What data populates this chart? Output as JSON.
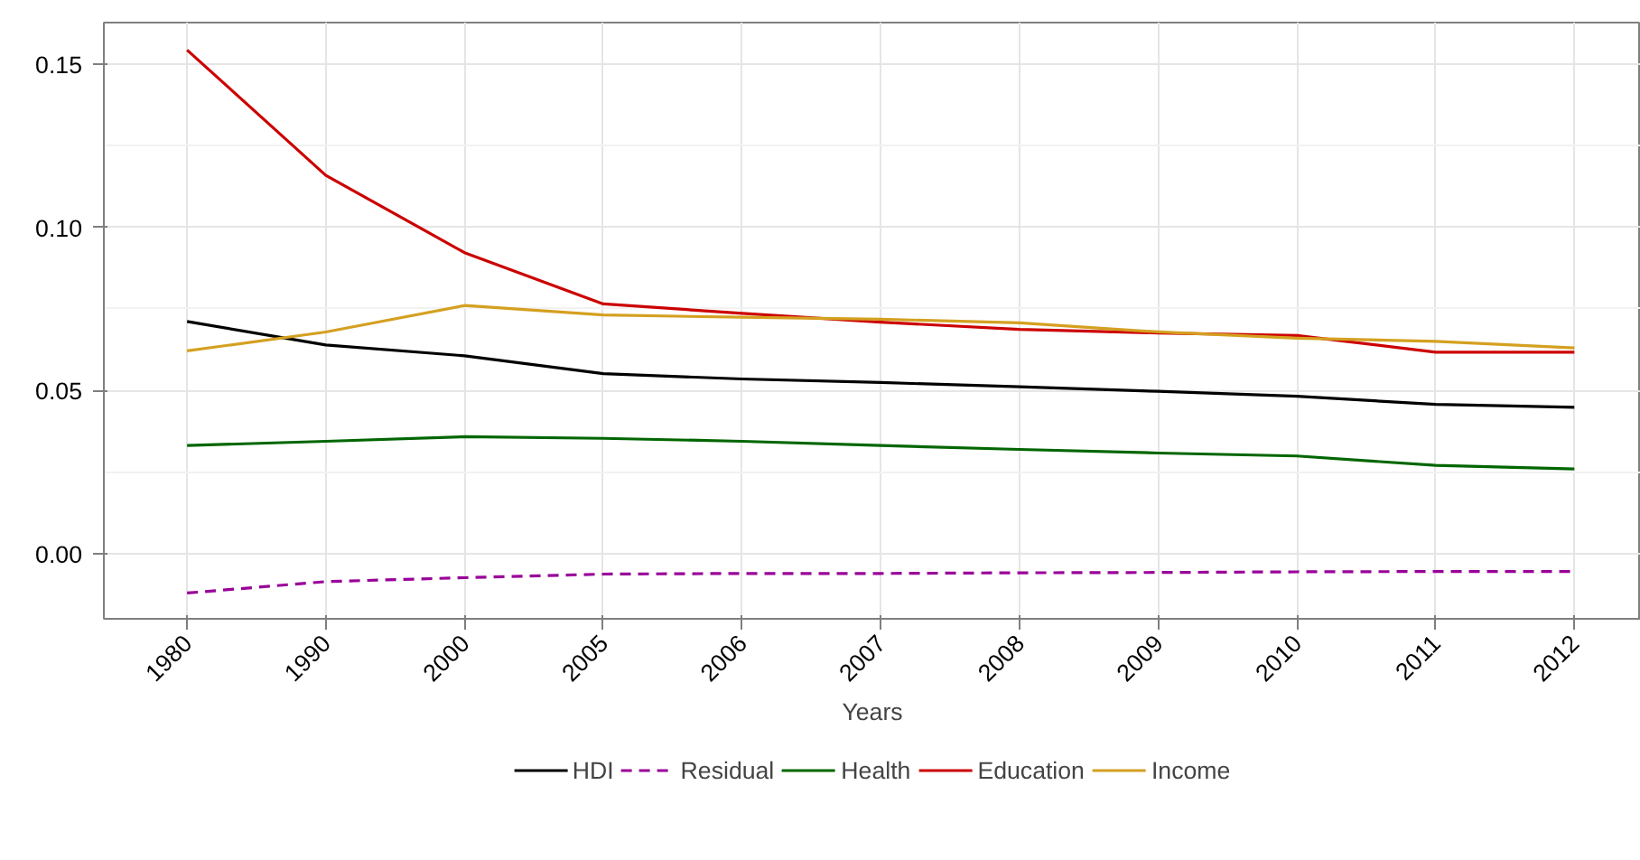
{
  "chart_data": {
    "type": "line",
    "xlabel": "Years",
    "categories": [
      "1980",
      "1990",
      "2000",
      "2005",
      "2006",
      "2007",
      "2008",
      "2009",
      "2010",
      "2011",
      "2012"
    ],
    "ylim": [
      -0.02,
      0.1627
    ],
    "yticks": [
      {
        "value": 0,
        "label": "0.00"
      },
      {
        "value": 0.05,
        "label": "0.05"
      },
      {
        "value": 0.1,
        "label": "0.10"
      },
      {
        "value": 0.15,
        "label": "0.15"
      }
    ],
    "grid": true,
    "legend": "bottom",
    "line_style": "solid",
    "series": [
      {
        "name": "HDI",
        "color": "#000000",
        "values": [
          0.0711,
          0.0639,
          0.0606,
          0.0551,
          0.0535,
          0.0524,
          0.0511,
          0.0497,
          0.0482,
          0.0457,
          0.0448
        ]
      },
      {
        "name": "Residual",
        "color": "#990099",
        "line_style": "dashed",
        "values": [
          -0.0121,
          -0.0086,
          -0.0074,
          -0.0063,
          -0.0061,
          -0.0061,
          -0.0059,
          -0.0058,
          -0.0056,
          -0.0055,
          -0.0055
        ]
      },
      {
        "name": "Health",
        "color": "#006600",
        "values": [
          0.0331,
          0.0344,
          0.0358,
          0.0353,
          0.0344,
          0.0331,
          0.0319,
          0.0308,
          0.0299,
          0.027,
          0.0259
        ]
      },
      {
        "name": "Education",
        "color": "#cc0000",
        "values": [
          0.1543,
          0.1159,
          0.0922,
          0.0765,
          0.0736,
          0.0709,
          0.0687,
          0.0676,
          0.0668,
          0.0617,
          0.0617
        ]
      },
      {
        "name": "Income",
        "color": "#d4a020",
        "values": [
          0.0621,
          0.0679,
          0.076,
          0.0731,
          0.0724,
          0.0718,
          0.0707,
          0.0679,
          0.066,
          0.065,
          0.063
        ]
      }
    ]
  }
}
